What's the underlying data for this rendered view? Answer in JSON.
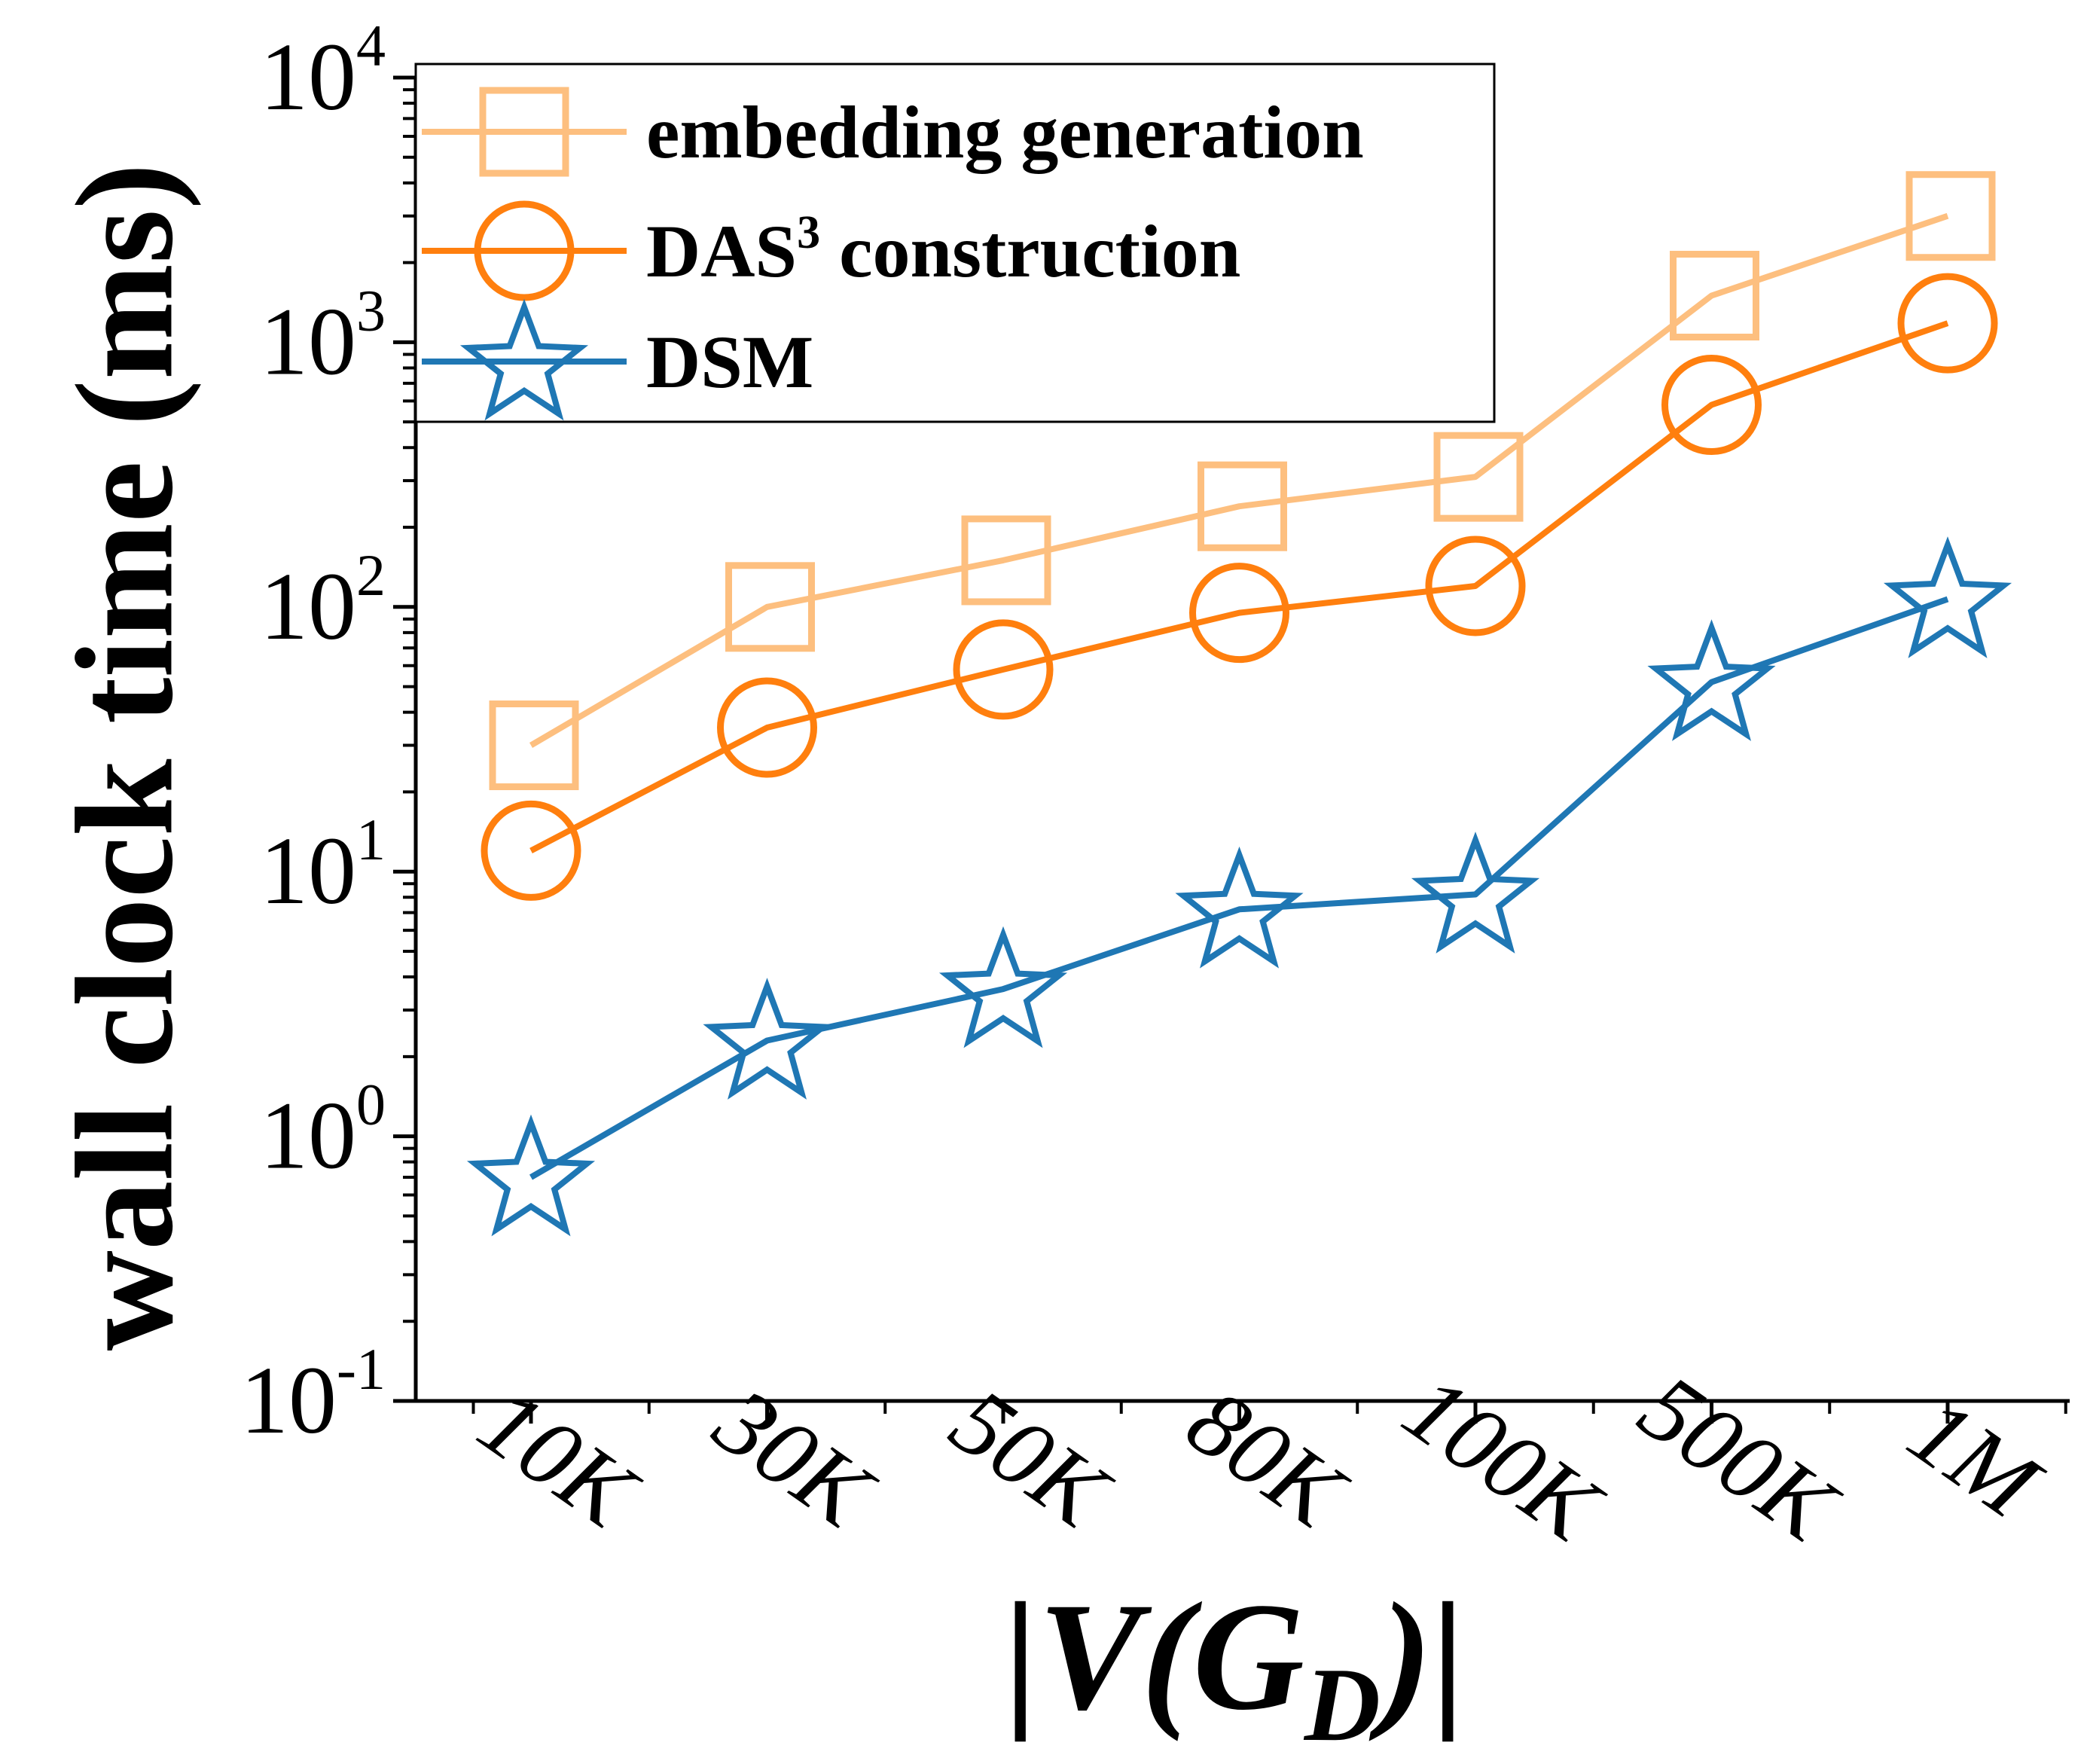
{
  "chart_data": {
    "type": "line",
    "yscale": "log",
    "ylim": [
      0.1,
      10000
    ],
    "ylabel": "wall clock time (ms)",
    "xlabel_parts": {
      "prefix": "|V(G",
      "subscript": "D",
      "suffix": ")|"
    },
    "categories": [
      "10K",
      "30K",
      "50K",
      "80K",
      "100K",
      "500K",
      "1M"
    ],
    "yticks": [
      {
        "base": "10",
        "exp": "-1"
      },
      {
        "base": "10",
        "exp": "0"
      },
      {
        "base": "10",
        "exp": "1"
      },
      {
        "base": "10",
        "exp": "2"
      },
      {
        "base": "10",
        "exp": "3"
      },
      {
        "base": "10",
        "exp": "4"
      }
    ],
    "legend_placement": "top-left",
    "series": [
      {
        "name": "embedding generation",
        "legend_main": "embedding generation",
        "legend_sup": "",
        "legend_tail": "",
        "marker": "square",
        "color": "#fdbf7f",
        "values": [
          30,
          100,
          150,
          240,
          310,
          1500,
          3000
        ]
      },
      {
        "name": "DAS3 construction",
        "legend_main": "DAS",
        "legend_sup": "3",
        "legend_tail": " construction",
        "marker": "circle",
        "color": "#ff7f0e",
        "values": [
          12,
          35,
          58,
          95,
          120,
          580,
          1180
        ]
      },
      {
        "name": "DSM",
        "legend_main": "DSM",
        "legend_sup": "",
        "legend_tail": "",
        "marker": "star",
        "color": "#1f77b4",
        "values": [
          0.7,
          2.3,
          3.6,
          7.2,
          8.2,
          52,
          107
        ]
      }
    ]
  }
}
